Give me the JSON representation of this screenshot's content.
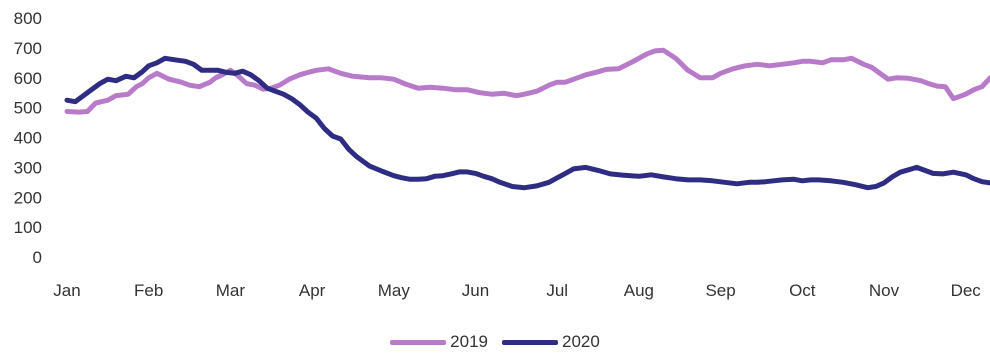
{
  "chart_data": {
    "type": "line",
    "title": "",
    "xlabel": "",
    "ylabel": "",
    "ylim": [
      0,
      800
    ],
    "yticks": [
      0,
      100,
      200,
      300,
      400,
      500,
      600,
      700,
      800
    ],
    "categories": [
      "Jan",
      "Feb",
      "Mar",
      "Apr",
      "May",
      "Jun",
      "Jul",
      "Aug",
      "Sep",
      "Oct",
      "Nov",
      "Dec"
    ],
    "grid": false,
    "legend_position": "bottom",
    "series": [
      {
        "name": "2019",
        "color": "#b77bc9",
        "x": [
          0,
          0.15,
          0.25,
          0.35,
          0.5,
          0.6,
          0.75,
          0.85,
          0.92,
          1.0,
          1.1,
          1.25,
          1.4,
          1.5,
          1.62,
          1.75,
          1.82,
          1.9,
          2.0,
          2.08,
          2.2,
          2.3,
          2.4,
          2.5,
          2.6,
          2.72,
          2.85,
          2.95,
          3.05,
          3.2,
          3.35,
          3.5,
          3.7,
          3.85,
          4.0,
          4.15,
          4.3,
          4.45,
          4.6,
          4.75,
          4.9,
          5.05,
          5.2,
          5.35,
          5.5,
          5.6,
          5.75,
          5.9,
          6.0,
          6.1,
          6.25,
          6.35,
          6.5,
          6.6,
          6.75,
          6.9,
          7.0,
          7.1,
          7.2,
          7.3,
          7.45,
          7.6,
          7.75,
          7.9,
          8.0,
          8.15,
          8.3,
          8.45,
          8.6,
          8.75,
          8.9,
          9.0,
          9.1,
          9.25,
          9.35,
          9.5,
          9.6,
          9.75,
          9.85,
          9.95,
          10.05,
          10.15,
          10.3,
          10.45,
          10.55,
          10.65,
          10.75,
          10.85,
          11.0,
          11.1,
          11.2,
          11.3,
          11.4
        ],
        "values": [
          487,
          485,
          487,
          515,
          525,
          540,
          545,
          570,
          580,
          600,
          615,
          595,
          585,
          575,
          570,
          585,
          600,
          610,
          625,
          610,
          580,
          575,
          562,
          565,
          575,
          595,
          610,
          618,
          625,
          630,
          615,
          605,
          600,
          600,
          595,
          578,
          565,
          568,
          565,
          560,
          560,
          550,
          545,
          548,
          540,
          545,
          555,
          575,
          585,
          585,
          600,
          610,
          620,
          628,
          630,
          650,
          665,
          680,
          690,
          692,
          665,
          625,
          600,
          600,
          615,
          630,
          640,
          645,
          640,
          645,
          650,
          655,
          655,
          650,
          660,
          660,
          665,
          645,
          635,
          615,
          595,
          600,
          598,
          590,
          580,
          572,
          570,
          530,
          545,
          560,
          570,
          600,
          598
        ]
      },
      {
        "name": "2020",
        "color": "#2e2d83",
        "x": [
          0,
          0.1,
          0.2,
          0.3,
          0.4,
          0.5,
          0.6,
          0.72,
          0.82,
          0.92,
          1.0,
          1.1,
          1.2,
          1.32,
          1.45,
          1.55,
          1.65,
          1.75,
          1.85,
          1.95,
          2.05,
          2.15,
          2.25,
          2.35,
          2.45,
          2.55,
          2.65,
          2.75,
          2.85,
          2.95,
          3.05,
          3.15,
          3.25,
          3.35,
          3.45,
          3.55,
          3.7,
          3.85,
          4.0,
          4.1,
          4.2,
          4.3,
          4.4,
          4.5,
          4.6,
          4.7,
          4.8,
          4.9,
          5.0,
          5.1,
          5.2,
          5.3,
          5.45,
          5.6,
          5.75,
          5.9,
          6.0,
          6.1,
          6.2,
          6.35,
          6.5,
          6.65,
          6.8,
          7.0,
          7.15,
          7.3,
          7.45,
          7.6,
          7.75,
          7.9,
          8.05,
          8.2,
          8.35,
          8.45,
          8.55,
          8.65,
          8.75,
          8.9,
          9.0,
          9.1,
          9.2,
          9.35,
          9.5,
          9.65,
          9.8,
          9.9,
          10.0,
          10.1,
          10.2,
          10.3,
          10.4,
          10.5,
          10.6,
          10.72,
          10.85,
          11.0,
          11.1,
          11.2,
          11.3,
          11.4
        ],
        "values": [
          525,
          520,
          540,
          560,
          580,
          595,
          590,
          605,
          600,
          620,
          640,
          650,
          665,
          660,
          655,
          645,
          625,
          625,
          625,
          618,
          615,
          622,
          610,
          590,
          565,
          555,
          545,
          530,
          510,
          485,
          465,
          430,
          405,
          395,
          360,
          335,
          305,
          288,
          272,
          265,
          260,
          260,
          262,
          270,
          272,
          278,
          285,
          285,
          280,
          270,
          262,
          250,
          236,
          232,
          238,
          250,
          265,
          280,
          295,
          300,
          290,
          278,
          274,
          270,
          275,
          268,
          262,
          258,
          258,
          255,
          250,
          245,
          250,
          250,
          252,
          255,
          258,
          260,
          255,
          258,
          258,
          255,
          250,
          242,
          232,
          236,
          248,
          268,
          284,
          292,
          300,
          290,
          280,
          278,
          284,
          275,
          262,
          252,
          248,
          245
        ]
      }
    ]
  }
}
